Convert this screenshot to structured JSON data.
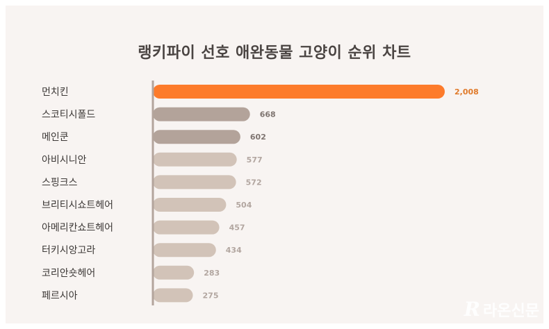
{
  "chart_data": {
    "type": "bar",
    "orientation": "horizontal",
    "title": "랭키파이 선호 애완동물 고양이 순위 차트",
    "categories": [
      "먼치킨",
      "스코티시폴드",
      "메인쿤",
      "아비시니안",
      "스핑크스",
      "브리티시쇼트헤어",
      "아메리칸쇼트헤어",
      "터키시앙고라",
      "코리안숏헤어",
      "페르시아"
    ],
    "values": [
      2008,
      668,
      602,
      577,
      572,
      504,
      457,
      434,
      283,
      275
    ],
    "value_labels": [
      "2,008",
      "668",
      "602",
      "577",
      "572",
      "504",
      "457",
      "434",
      "283",
      "275"
    ],
    "xlim": [
      0,
      2008
    ],
    "colors": {
      "highlight": "#fd7b2b",
      "mid": "#b3a39a",
      "light": "#d2c3b8",
      "label_highlight": "#e07a2a",
      "label_mid": "#7e7470",
      "label_light": "#b2a6a0",
      "axis": "#b3a49c",
      "category_text": "#3c3836"
    }
  },
  "watermark": {
    "text": "라온신문",
    "logo_icon": "R"
  }
}
